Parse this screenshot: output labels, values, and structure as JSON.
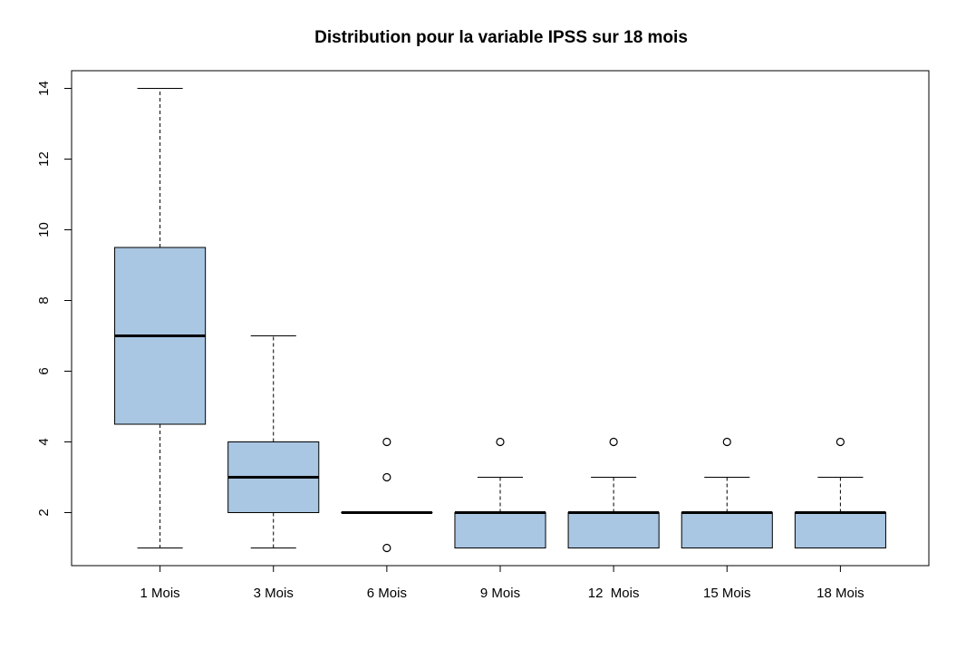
{
  "chart_data": {
    "type": "boxplot",
    "title": "Distribution pour la variable IPSS sur 18 mois",
    "xlabel": "",
    "ylabel": "",
    "ylim": [
      0.5,
      14.5
    ],
    "y_ticks": [
      "2",
      "4",
      "6",
      "8",
      "10",
      "12",
      "14"
    ],
    "grid": false,
    "colors": {
      "box_fill": "#a9c6e2",
      "stroke": "#000000"
    },
    "categories": [
      "1 Mois",
      "3 Mois",
      "6 Mois",
      "9 Mois",
      "12  Mois",
      "15 Mois",
      "18 Mois"
    ],
    "boxes": [
      {
        "whisker_low": 1,
        "q1": 4.5,
        "median": 7,
        "q3": 9.5,
        "whisker_high": 14,
        "outliers": []
      },
      {
        "whisker_low": 1,
        "q1": 2,
        "median": 3,
        "q3": 4,
        "whisker_high": 7,
        "outliers": []
      },
      {
        "whisker_low": 2,
        "q1": 2,
        "median": 2,
        "q3": 2,
        "whisker_high": 2,
        "outliers": [
          1,
          3,
          4
        ]
      },
      {
        "whisker_low": 1,
        "q1": 1,
        "median": 2,
        "q3": 2,
        "whisker_high": 3,
        "outliers": [
          4
        ]
      },
      {
        "whisker_low": 1,
        "q1": 1,
        "median": 2,
        "q3": 2,
        "whisker_high": 3,
        "outliers": [
          4
        ]
      },
      {
        "whisker_low": 1,
        "q1": 1,
        "median": 2,
        "q3": 2,
        "whisker_high": 3,
        "outliers": [
          4
        ]
      },
      {
        "whisker_low": 1,
        "q1": 1,
        "median": 2,
        "q3": 2,
        "whisker_high": 3,
        "outliers": [
          4
        ]
      }
    ]
  }
}
